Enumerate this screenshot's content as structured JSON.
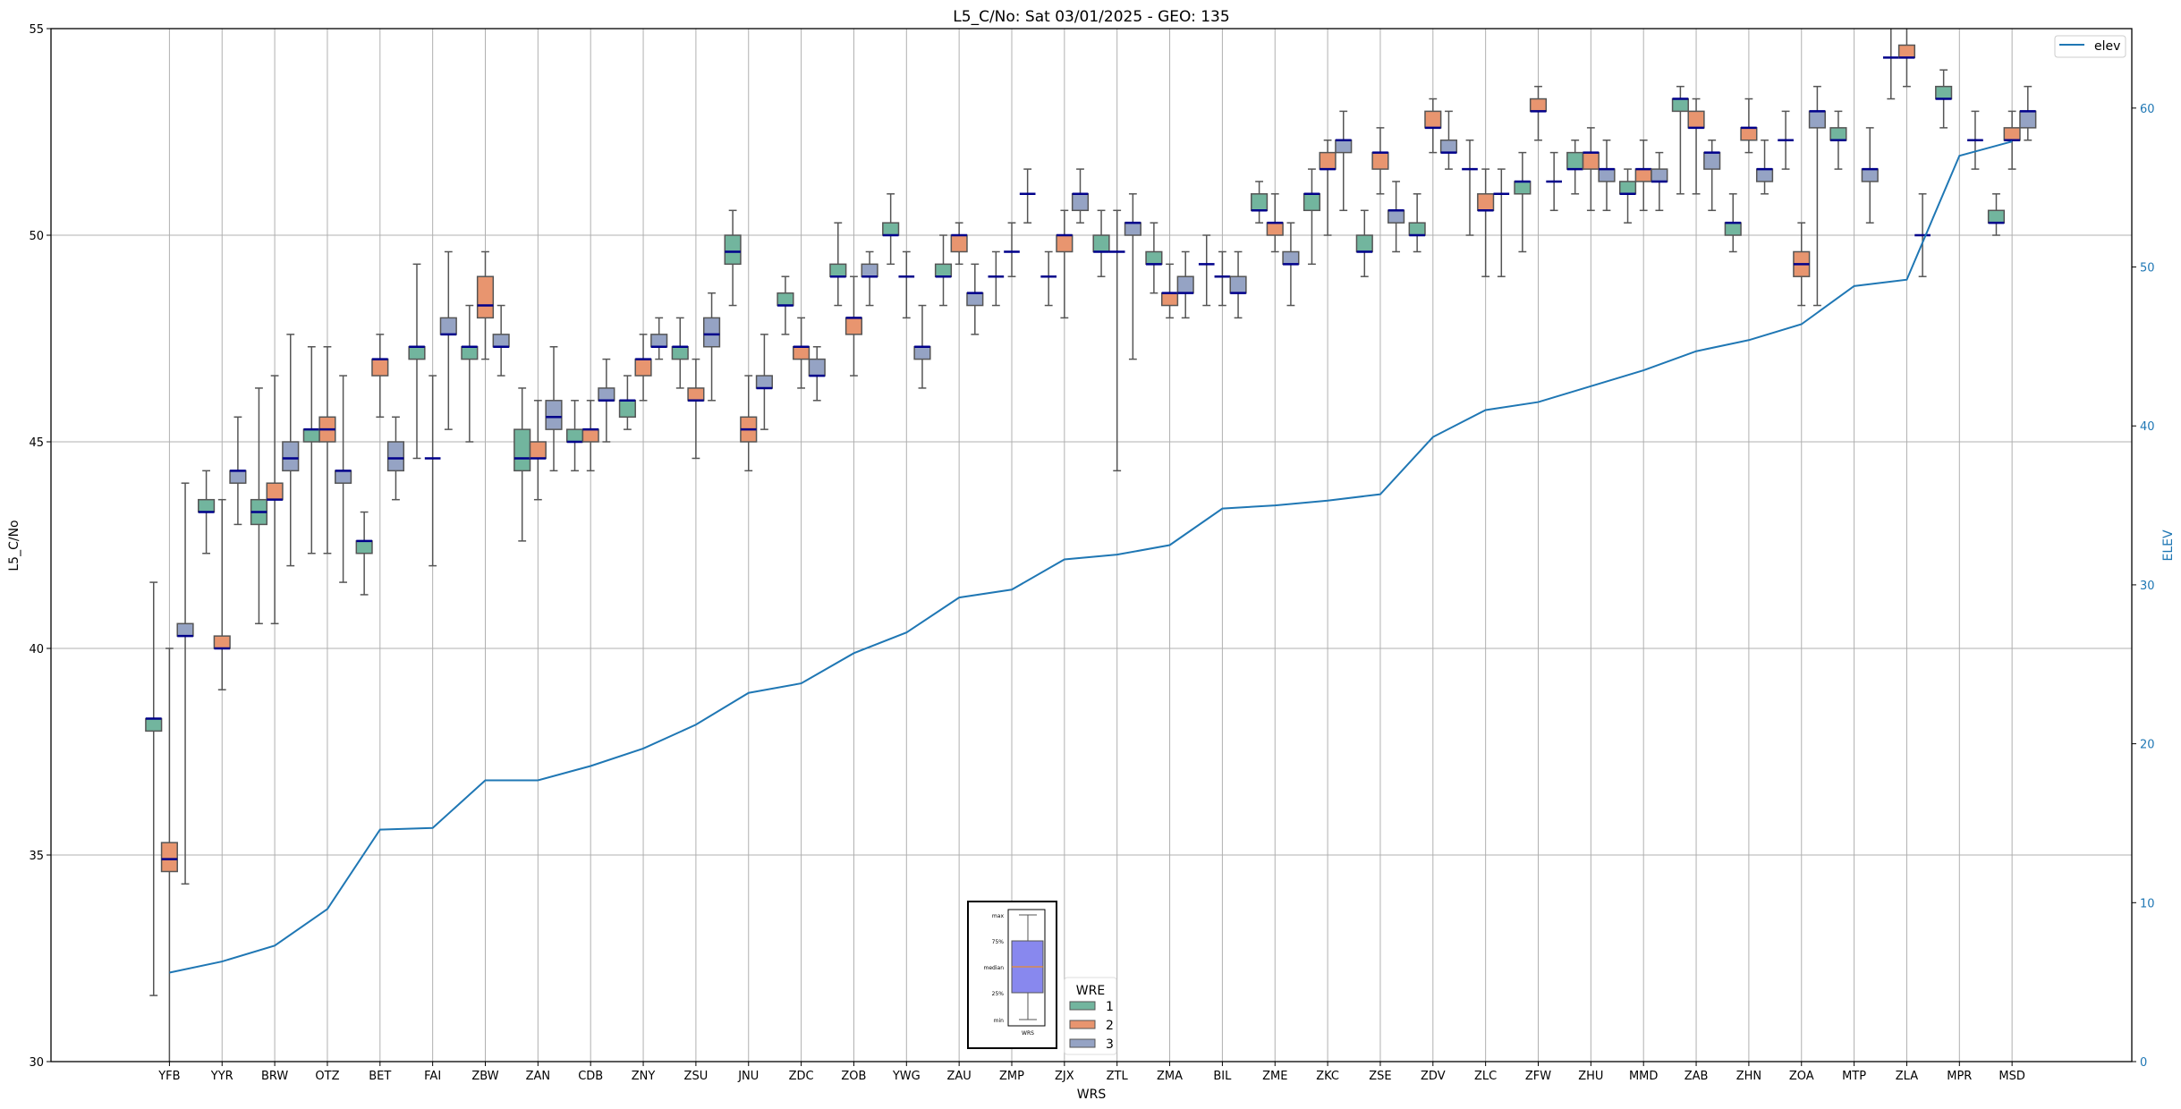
{
  "chart_data": {
    "type": "box",
    "title": "L5_C/No: Sat 03/01/2025 - GEO: 135",
    "xlabel": "WRS",
    "ylabel": "L5_C/No",
    "y2label": "ELEV",
    "ylim": [
      30,
      55
    ],
    "y2lim": [
      0,
      65
    ],
    "yticks": [
      30,
      35,
      40,
      45,
      50,
      55
    ],
    "y2ticks": [
      0,
      10,
      20,
      30,
      40,
      50,
      60
    ],
    "grid": true,
    "colors": {
      "1": "#72b59e",
      "2": "#e8956f",
      "3": "#95a3c4",
      "median": "#00008b",
      "whisker": "#555555",
      "elev": "#1f77b4",
      "axis2": "#1f77b4"
    },
    "categories": [
      "YFB",
      "YYR",
      "BRW",
      "OTZ",
      "BET",
      "FAI",
      "ZBW",
      "ZAN",
      "CDB",
      "ZNY",
      "ZSU",
      "JNU",
      "ZDC",
      "ZOB",
      "YWG",
      "ZAU",
      "ZMP",
      "ZJX",
      "ZTL",
      "ZMA",
      "BIL",
      "ZME",
      "ZKC",
      "ZSE",
      "ZDV",
      "ZLC",
      "ZFW",
      "ZHU",
      "MMD",
      "ZAB",
      "ZHN",
      "ZOA",
      "MTP",
      "ZLA",
      "MPR",
      "MSD"
    ],
    "box_fields": [
      "min",
      "q1",
      "median",
      "q3",
      "max"
    ],
    "series": [
      {
        "name": "1",
        "boxes": [
          [
            31.6,
            38.0,
            38.3,
            38.3,
            41.6
          ],
          [
            42.3,
            43.3,
            43.3,
            43.6,
            44.3
          ],
          [
            40.6,
            43.0,
            43.3,
            43.6,
            46.3
          ],
          [
            42.3,
            45.0,
            45.3,
            45.3,
            47.3
          ],
          [
            41.3,
            42.3,
            42.6,
            42.6,
            43.3
          ],
          [
            44.6,
            47.0,
            47.3,
            47.3,
            49.3
          ],
          [
            45.0,
            47.0,
            47.3,
            47.3,
            48.3
          ],
          [
            42.6,
            44.3,
            44.6,
            45.3,
            46.3
          ],
          [
            44.3,
            45.0,
            45.0,
            45.3,
            46.0
          ],
          [
            45.3,
            45.6,
            46.0,
            46.0,
            46.6
          ],
          [
            46.3,
            47.0,
            47.3,
            47.3,
            48.0
          ],
          [
            48.3,
            49.3,
            49.6,
            50.0,
            50.6
          ],
          [
            47.6,
            48.3,
            48.3,
            48.6,
            49.0
          ],
          [
            48.3,
            49.0,
            49.0,
            49.3,
            50.3
          ],
          [
            49.3,
            50.0,
            50.0,
            50.3,
            51.0
          ],
          [
            48.3,
            49.0,
            49.0,
            49.3,
            50.0
          ],
          [
            48.3,
            49.0,
            49.0,
            49.0,
            49.6
          ],
          [
            48.3,
            49.0,
            49.0,
            49.0,
            49.6
          ],
          [
            49.0,
            49.6,
            49.6,
            50.0,
            50.6
          ],
          [
            48.6,
            49.3,
            49.3,
            49.6,
            50.3
          ],
          [
            48.3,
            49.3,
            49.3,
            49.3,
            50.0
          ],
          [
            50.3,
            50.6,
            50.6,
            51.0,
            51.3
          ],
          [
            49.3,
            50.6,
            51.0,
            51.0,
            51.6
          ],
          [
            49.0,
            49.6,
            49.6,
            50.0,
            50.6
          ],
          [
            49.6,
            50.0,
            50.0,
            50.3,
            51.0
          ],
          [
            50.0,
            51.6,
            51.6,
            51.6,
            52.3
          ],
          [
            49.6,
            51.0,
            51.3,
            51.3,
            52.0
          ],
          [
            51.0,
            51.6,
            51.6,
            52.0,
            52.3
          ],
          [
            50.3,
            51.0,
            51.0,
            51.3,
            51.6
          ],
          [
            51.0,
            53.0,
            53.3,
            53.3,
            53.6
          ],
          [
            49.6,
            50.0,
            50.3,
            50.3,
            51.0
          ],
          [
            51.6,
            52.3,
            52.3,
            52.3,
            53.0
          ],
          [
            51.6,
            52.3,
            52.3,
            52.6,
            53.0
          ],
          [
            53.3,
            54.3,
            54.3,
            54.3,
            55.3
          ],
          [
            52.6,
            53.3,
            53.3,
            53.6,
            54.0
          ],
          [
            50.0,
            50.3,
            50.3,
            50.6,
            51.0
          ]
        ]
      },
      {
        "name": "2",
        "boxes": [
          [
            29.8,
            34.6,
            34.9,
            35.3,
            40.0
          ],
          [
            39.0,
            40.0,
            40.0,
            40.3,
            43.6
          ],
          [
            40.6,
            43.6,
            43.6,
            44.0,
            46.6
          ],
          [
            42.3,
            45.0,
            45.3,
            45.6,
            47.3
          ],
          [
            45.6,
            46.6,
            47.0,
            47.0,
            47.6
          ],
          [
            42.0,
            44.6,
            44.6,
            44.6,
            46.6
          ],
          [
            47.0,
            48.0,
            48.3,
            49.0,
            49.6
          ],
          [
            43.6,
            44.6,
            44.6,
            45.0,
            46.0
          ],
          [
            44.3,
            45.0,
            45.3,
            45.3,
            46.0
          ],
          [
            46.0,
            46.6,
            47.0,
            47.0,
            47.6
          ],
          [
            44.6,
            46.0,
            46.0,
            46.3,
            47.0
          ],
          [
            44.3,
            45.0,
            45.3,
            45.6,
            46.6
          ],
          [
            46.3,
            47.0,
            47.3,
            47.3,
            48.0
          ],
          [
            46.6,
            47.6,
            48.0,
            48.0,
            49.0
          ],
          [
            48.0,
            49.0,
            49.0,
            49.0,
            49.6
          ],
          [
            49.3,
            49.6,
            50.0,
            50.0,
            50.3
          ],
          [
            49.0,
            49.6,
            49.6,
            49.6,
            50.3
          ],
          [
            48.0,
            49.6,
            50.0,
            50.0,
            50.6
          ],
          [
            44.3,
            49.6,
            49.6,
            49.6,
            50.6
          ],
          [
            48.0,
            48.3,
            48.6,
            48.6,
            49.3
          ],
          [
            48.3,
            49.0,
            49.0,
            49.0,
            49.6
          ],
          [
            49.6,
            50.0,
            50.3,
            50.3,
            51.0
          ],
          [
            50.0,
            51.6,
            51.6,
            52.0,
            52.3
          ],
          [
            51.0,
            51.6,
            52.0,
            52.0,
            52.6
          ],
          [
            52.0,
            52.6,
            52.6,
            53.0,
            53.3
          ],
          [
            49.0,
            50.6,
            50.6,
            51.0,
            51.6
          ],
          [
            52.3,
            53.0,
            53.0,
            53.3,
            53.6
          ],
          [
            50.6,
            51.6,
            52.0,
            52.0,
            52.6
          ],
          [
            50.6,
            51.3,
            51.6,
            51.6,
            52.3
          ],
          [
            51.0,
            52.6,
            52.6,
            53.0,
            53.3
          ],
          [
            52.0,
            52.3,
            52.6,
            52.6,
            53.3
          ],
          [
            48.3,
            49.0,
            49.3,
            49.6,
            50.3
          ],
          null,
          [
            53.6,
            54.3,
            54.3,
            54.6,
            55.3
          ],
          null,
          [
            51.6,
            52.3,
            52.3,
            52.6,
            53.0
          ]
        ]
      },
      {
        "name": "3",
        "boxes": [
          [
            34.3,
            40.3,
            40.3,
            40.6,
            44.0
          ],
          [
            43.0,
            44.0,
            44.3,
            44.3,
            45.6
          ],
          [
            42.0,
            44.3,
            44.6,
            45.0,
            47.6
          ],
          [
            41.6,
            44.0,
            44.3,
            44.3,
            46.6
          ],
          [
            43.6,
            44.3,
            44.6,
            45.0,
            45.6
          ],
          [
            45.3,
            47.6,
            47.6,
            48.0,
            49.6
          ],
          [
            46.6,
            47.3,
            47.3,
            47.6,
            48.3
          ],
          [
            44.3,
            45.3,
            45.6,
            46.0,
            47.3
          ],
          [
            45.0,
            46.0,
            46.0,
            46.3,
            47.0
          ],
          [
            47.0,
            47.3,
            47.3,
            47.6,
            48.0
          ],
          [
            46.0,
            47.3,
            47.6,
            48.0,
            48.6
          ],
          [
            45.3,
            46.3,
            46.3,
            46.6,
            47.6
          ],
          [
            46.0,
            46.6,
            46.6,
            47.0,
            47.3
          ],
          [
            48.3,
            49.0,
            49.0,
            49.3,
            49.6
          ],
          [
            46.3,
            47.0,
            47.3,
            47.3,
            48.3
          ],
          [
            47.6,
            48.3,
            48.6,
            48.6,
            49.3
          ],
          [
            50.3,
            51.0,
            51.0,
            51.0,
            51.6
          ],
          [
            50.3,
            50.6,
            51.0,
            51.0,
            51.6
          ],
          [
            47.0,
            50.0,
            50.3,
            50.3,
            51.0
          ],
          [
            48.0,
            48.6,
            48.6,
            49.0,
            49.6
          ],
          [
            48.0,
            48.6,
            48.6,
            49.0,
            49.6
          ],
          [
            48.3,
            49.3,
            49.3,
            49.6,
            50.3
          ],
          [
            50.6,
            52.0,
            52.3,
            52.3,
            53.0
          ],
          [
            49.6,
            50.3,
            50.6,
            50.6,
            51.3
          ],
          [
            51.6,
            52.0,
            52.0,
            52.3,
            53.0
          ],
          [
            49.0,
            51.0,
            51.0,
            51.0,
            51.6
          ],
          [
            50.6,
            51.3,
            51.3,
            51.3,
            52.0
          ],
          [
            50.6,
            51.3,
            51.6,
            51.6,
            52.3
          ],
          [
            50.6,
            51.3,
            51.3,
            51.6,
            52.0
          ],
          [
            50.6,
            51.6,
            52.0,
            52.0,
            52.3
          ],
          [
            51.0,
            51.3,
            51.6,
            51.6,
            52.3
          ],
          [
            48.3,
            52.6,
            53.0,
            53.0,
            53.6
          ],
          [
            50.3,
            51.3,
            51.6,
            51.6,
            52.6
          ],
          [
            49.0,
            50.0,
            50.0,
            50.0,
            51.0
          ],
          [
            51.6,
            52.3,
            52.3,
            52.3,
            53.0
          ],
          [
            52.3,
            52.6,
            53.0,
            53.0,
            53.6
          ]
        ]
      }
    ],
    "elev": {
      "name": "elev",
      "values": [
        5.6,
        6.3,
        7.3,
        9.6,
        14.6,
        14.7,
        17.7,
        17.7,
        18.6,
        19.7,
        21.2,
        23.2,
        23.8,
        25.7,
        27.0,
        29.2,
        29.7,
        31.6,
        31.9,
        32.5,
        34.8,
        35.0,
        35.3,
        35.7,
        39.3,
        41.0,
        41.5,
        42.5,
        43.5,
        44.7,
        45.4,
        46.4,
        48.8,
        49.2,
        57.0,
        57.9
      ]
    },
    "legend": {
      "title": "WRE",
      "entries": [
        "1",
        "2",
        "3"
      ],
      "placement": "bottom-center"
    },
    "elev_legend": {
      "label": "elev",
      "placement": "top-right"
    },
    "key_inset": {
      "labels": [
        "max",
        "75%",
        "median",
        "25%",
        "min"
      ],
      "xlabel": "WRS"
    }
  }
}
